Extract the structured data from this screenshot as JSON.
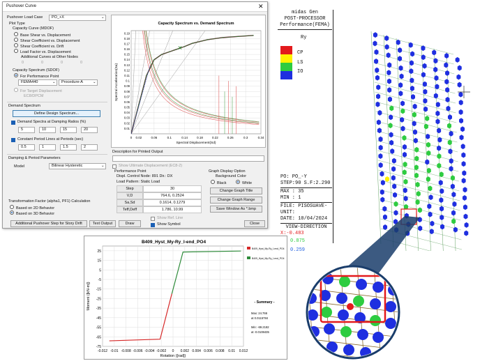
{
  "dialog": {
    "title": "Pushover Curve",
    "load_case_label": "Pushover Load Case",
    "load_case_value": "PO_+X",
    "plot_type_label": "Plot Type",
    "capacity_curve_label": "Capacity Curve (MDOF)",
    "capacity_options": [
      {
        "label": "Base Shear vs. Displacement",
        "selected": false
      },
      {
        "label": "Shear Coefficient vs. Displacement",
        "selected": false
      },
      {
        "label": "Shear Coefficient vs. Drift",
        "selected": false
      },
      {
        "label": "Load Factor vs. Displacement",
        "selected": false
      }
    ],
    "additional_curves_label": "Additional Curves at Other Nodes",
    "additional_curves_values": [
      "0",
      "0",
      "0",
      "0"
    ],
    "capacity_spectrum_label": "Capacity Spectrum (SDOF)",
    "for_performance_point": "For Performance Point",
    "method_value": "FEMA440",
    "procedure_value": "Procedure-A",
    "for_target_displacement": "For Target Displacement",
    "target_method_value": "EC8/DPCM",
    "demand_spectrum_label": "Demand Spectrum",
    "define_button": "Define Design Spectrum...",
    "damping_checkbox": "Demand Spectra at Damping Ratios (%)",
    "damping_values": [
      "5",
      "10",
      "15",
      "20"
    ],
    "period_checkbox": "Constant Period Lines at Periods (sec)",
    "period_values": [
      "0.5",
      "1",
      "1.5",
      "2"
    ],
    "damping_period_label": "Damping & Period Parameters",
    "model_label": "Model",
    "model_value": "Bilinear Hysteretic",
    "transformation_label": "Transformation Factor (alpha1, PF1) Calculation",
    "transformation_options": [
      {
        "label": "Based on 2D Behavior",
        "selected": false
      },
      {
        "label": "Based on 3D Behavior",
        "selected": true
      }
    ],
    "chart_title": "Capacity Spectrum vs. Demand Spectrum",
    "chart_xlabel": "Spectral Displacement(Sd)",
    "chart_ylabel": "Spectral Acceleration(Sa)",
    "description_label": "Description for Printed Output",
    "ultimate_disp_checkbox": "Show Ultimate Displacement (EC8-2)",
    "performance_point_label": "Performance Point",
    "displ_control_node": "Displ. Control Node: 891 Dir.: DX",
    "load_pattern": "Load Pattern: Static Load",
    "perf_table": [
      {
        "label": "Step",
        "value": "30"
      },
      {
        "label": "V,D",
        "value": "764.6, 0.2524"
      },
      {
        "label": "Sa,Sd",
        "value": "0.1614, 0.1279"
      },
      {
        "label": "Teff,Deff",
        "value": "1.786, 10.99"
      }
    ],
    "graph_display_label": "Graph Display Option",
    "background_color_label": "Background Color",
    "bg_options": [
      {
        "label": "Black",
        "selected": false
      },
      {
        "label": "White",
        "selected": true
      }
    ],
    "change_title_button": "Change Graph Title",
    "change_range_button": "Change Graph Range",
    "save_window_button": "Save Window As *.bmp",
    "show_ref_line": "Show Ref. Line",
    "show_symbol": "Show Symbol",
    "additional_step_button": "Additional Pushover Step for Story Drift",
    "text_output_button": "Text Output",
    "draw_button": "Draw",
    "close_button": "Close"
  },
  "midas": {
    "header": [
      "midas Gen",
      "POST-PROCESSOR",
      "Performance(FEMA)"
    ],
    "sublabel": "Ry",
    "legend": [
      {
        "label": "CP",
        "color": "#e31a1c"
      },
      {
        "label": "LS",
        "color": "#fff200"
      },
      {
        "label": "IO",
        "color": "#2ecc40"
      }
    ],
    "legend_bottom_color": "#1f2fe0",
    "info": [
      "PO: PO_-Y",
      "STEP:90 S.F:2.290",
      "MAX : 35",
      "MIN : 1",
      "FILE: PISOSUAVE-",
      "UNIT:",
      "DATE: 10/04/2024"
    ],
    "view_direction": "VIEW-DIRECTION",
    "view_values": [
      "X:-0.483",
      "Y:-0.875",
      "Z: 0.259"
    ],
    "zoom_view_values": [
      "0.875",
      "0.259"
    ]
  },
  "hyst": {
    "title": "B409_Hyst_My-Ry_I-end_PO4",
    "xlabel": "Rotation ([rad])",
    "ylabel": "Moment ([kN-m])",
    "legend": [
      {
        "label": "B409_Hyst_My-Ry_I-end_PO4",
        "color": "#d62828"
      },
      {
        "label": "B409_Hyst_My-Ry_I-end_PO4",
        "color": "#2e8b3a"
      }
    ],
    "summary_title": "- Summary -",
    "summary_lines": [
      "Max: 24.766",
      "at 0.0115784",
      "Min: -69.2182",
      "at -0.0108435"
    ]
  },
  "chart_data": [
    {
      "type": "line",
      "title": "Capacity Spectrum vs. Demand Spectrum",
      "xlabel": "Spectral Displacement(Sd)",
      "ylabel": "Spectral Acceleration(Sa)",
      "xlim": [
        0,
        0.34
      ],
      "ylim": [
        0,
        0.195
      ],
      "x_ticks": [
        "0",
        "0.02",
        "0.06",
        "0.1",
        "0.14",
        "0.18",
        "0.22",
        "0.26",
        "0.3",
        "0.34"
      ],
      "y_ticks": [
        "0.01",
        "0.02",
        "0.03",
        "0.04",
        "0.05",
        "0.06",
        "0.07",
        "0.08",
        "0.09",
        "0.1",
        "0.11",
        "0.12",
        "0.13",
        "0.14",
        "0.15",
        "0.16",
        "0.17",
        "0.18",
        "0.19"
      ],
      "series": [
        {
          "color": "#6b1a2b",
          "x": [
            0,
            0.02,
            0.04,
            0.06,
            0.08,
            0.1,
            0.12,
            0.14,
            0.16,
            0.2,
            0.24,
            0.28,
            0.32
          ],
          "y": [
            0,
            0.055,
            0.11,
            0.14,
            0.15,
            0.155,
            0.16,
            0.165,
            0.171,
            0.178,
            0.182,
            0.184,
            0.186
          ]
        },
        {
          "color": "#2a8a3a",
          "x": [
            0,
            0.02,
            0.04,
            0.06,
            0.08,
            0.1,
            0.12,
            0.14,
            0.16,
            0.2,
            0.24,
            0.28,
            0.32
          ],
          "y": [
            0,
            0.055,
            0.11,
            0.14,
            0.15,
            0.155,
            0.16,
            0.165,
            0.171,
            0.178,
            0.182,
            0.184,
            0.186
          ]
        }
      ],
      "performance_point": {
        "x": 0.1279,
        "y": 0.1614
      },
      "grid": true
    },
    {
      "type": "line",
      "title": "B409_Hyst_My-Ry_I-end_PO4",
      "xlabel": "Rotation ([rad])",
      "ylabel": "Moment ([kN-m])",
      "xlim": [
        -0.012,
        0.012
      ],
      "ylim": [
        -75,
        30
      ],
      "x_ticks": [
        "-0.012",
        "-0.01",
        "-0.008",
        "-0.006",
        "-0.004",
        "-0.002",
        "0",
        "0.002",
        "0.004",
        "0.006",
        "0.008",
        "0.01",
        "0.012"
      ],
      "y_ticks": [
        "25",
        "15",
        "5",
        "-5",
        "-15",
        "-25",
        "-35",
        "-45",
        "-55",
        "-65",
        "-75"
      ],
      "series": [
        {
          "color": "#d62828",
          "x": [
            -0.0108435,
            -0.0022,
            -0.0002
          ],
          "y": [
            -69.2182,
            -67.5,
            -20
          ]
        },
        {
          "color": "#2e8b3a",
          "x": [
            -0.0002,
            0.0017,
            0.0115784
          ],
          "y": [
            -20,
            23.7,
            24.766
          ]
        }
      ],
      "grid": true
    }
  ]
}
